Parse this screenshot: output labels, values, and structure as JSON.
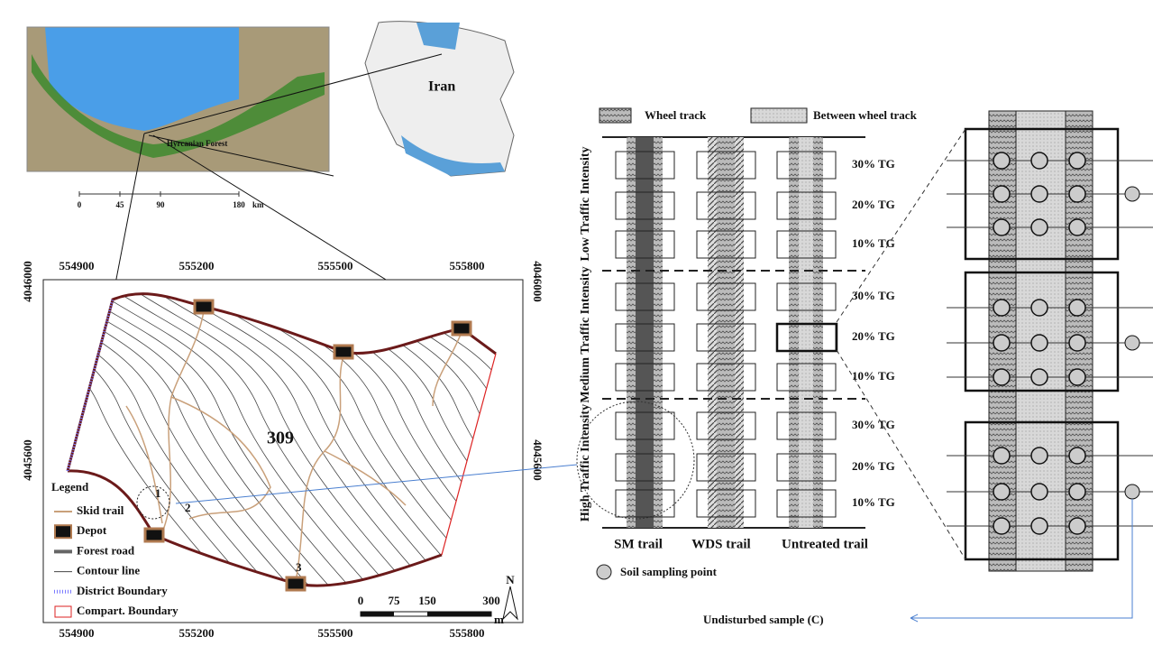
{
  "regional_map": {
    "country": "Iran",
    "forest": "Hyrcanian Forest",
    "scale": {
      "ticks": [
        0,
        45,
        90,
        180
      ],
      "unit": "km"
    }
  },
  "site_map": {
    "x_coords_top": [
      554900,
      555200,
      555500,
      555800
    ],
    "x_coords_bottom": [
      554900,
      555200,
      555500,
      555800
    ],
    "y_coords_left": [
      4046000,
      4045600
    ],
    "y_coords_right": [
      4046000,
      4045600
    ],
    "compartment": "309",
    "points": [
      "1",
      "2",
      "3"
    ],
    "legend": {
      "title": "Legend",
      "items": [
        "Skid trail",
        "Depot",
        "Forest road",
        "Contour line",
        "District Boundary",
        "Compart. Boundary"
      ]
    },
    "scale": {
      "ticks": [
        0,
        75,
        150,
        300
      ],
      "unit": "m"
    },
    "north": "N"
  },
  "layout": {
    "legend": [
      "Wheel track",
      "Between wheel track"
    ],
    "groups": [
      {
        "label": "Low Traffic Intensity",
        "rows": [
          "30% TG",
          "20% TG",
          "10% TG"
        ]
      },
      {
        "label": "Medium Traffic Intensity",
        "rows": [
          "30% TG",
          "20% TG",
          "10% TG"
        ]
      },
      {
        "label": "High Traffic Intensity",
        "rows": [
          "30% TG",
          "20% TG",
          "10% TG"
        ]
      }
    ],
    "trails": [
      "SM trail",
      "WDS trail",
      "Untreated trail"
    ],
    "point_legend": "Soil sampling point",
    "sample_note": "Undisturbed sample (C)"
  }
}
